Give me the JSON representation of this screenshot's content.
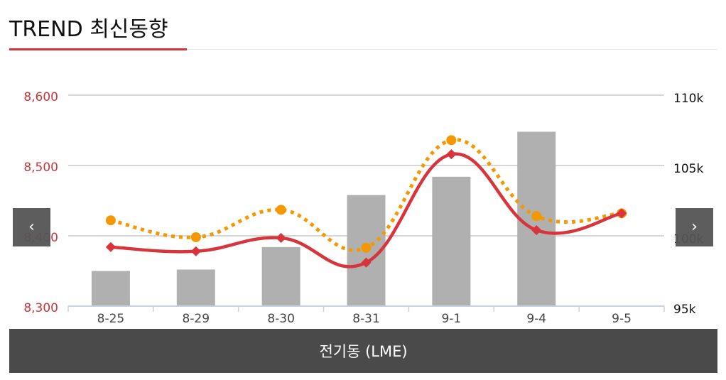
{
  "header": {
    "title": "TREND 최신동향"
  },
  "footer": {
    "label": "전기동 (LME)"
  },
  "nav": {
    "prev_icon": "chevron-left-icon",
    "next_icon": "chevron-right-icon"
  },
  "colors": {
    "accent": "#d7343c",
    "bar": "#b0b0b0",
    "dotted": "#f39800",
    "footer_bg": "#4a4a4a"
  },
  "chart_data": {
    "type": "bar",
    "categories": [
      "8-25",
      "8-29",
      "8-30",
      "8-31",
      "9-1",
      "9-4",
      "9-5"
    ],
    "y_left": {
      "ticks": [
        "8,600",
        "8,500",
        "8,400",
        "8,300"
      ],
      "tick_values": [
        8600,
        8500,
        8400,
        8300
      ],
      "range": [
        8300,
        8600
      ]
    },
    "y_right": {
      "ticks": [
        "110k",
        "105k",
        "100k",
        "95k"
      ],
      "tick_values": [
        110000,
        105000,
        100000,
        95000
      ],
      "range": [
        95000,
        110000
      ]
    },
    "grid": true,
    "series": [
      {
        "type": "bar",
        "axis": "right",
        "values": [
          97500,
          97600,
          99200,
          102900,
          104200,
          107400,
          null
        ]
      },
      {
        "type": "line",
        "axis": "left",
        "style": "solid",
        "values": [
          8384,
          8378,
          8397,
          8362,
          8516,
          8408,
          8432
        ]
      },
      {
        "type": "line",
        "axis": "left",
        "style": "dotted",
        "values": [
          8422,
          8398,
          8437,
          8383,
          8536,
          8428,
          8432
        ]
      }
    ]
  }
}
